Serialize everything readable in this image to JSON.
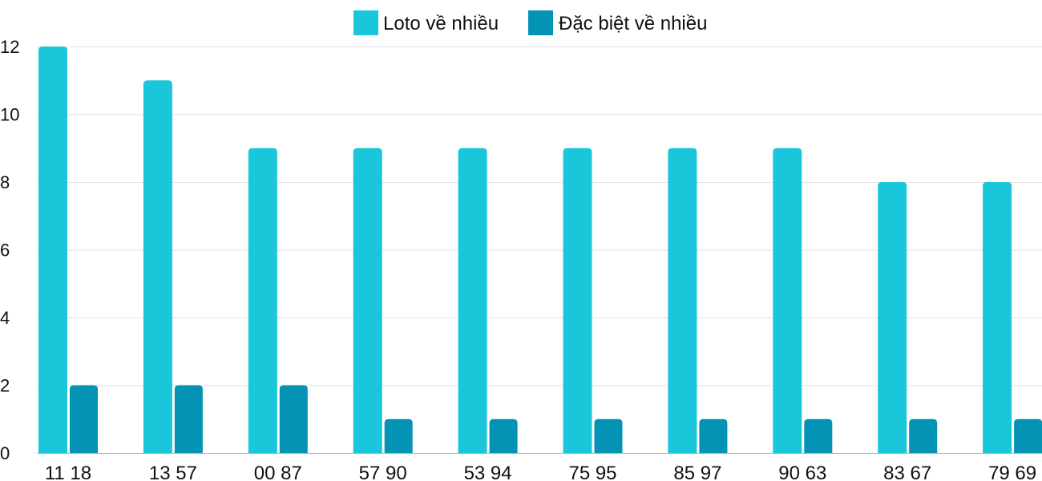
{
  "chart_data": {
    "type": "bar",
    "categories": [
      "11 18",
      "13 57",
      "00 87",
      "57 90",
      "53 94",
      "75 95",
      "85 97",
      "90 63",
      "83 67",
      "79 69"
    ],
    "series": [
      {
        "name": "Loto về nhiều",
        "color": "#1ac6da",
        "values": [
          12,
          11,
          9,
          9,
          9,
          9,
          9,
          9,
          8,
          8
        ]
      },
      {
        "name": "Đặc biệt về nhiều",
        "color": "#0492b5",
        "values": [
          2,
          2,
          2,
          1,
          1,
          1,
          1,
          1,
          1,
          1
        ]
      }
    ],
    "yticks": [
      "0",
      "2",
      "4",
      "6",
      "8",
      "10",
      "12"
    ],
    "ylim": [
      0,
      12
    ],
    "grid": true,
    "legend_position": "top-center",
    "title": "",
    "xlabel": "",
    "ylabel": ""
  }
}
